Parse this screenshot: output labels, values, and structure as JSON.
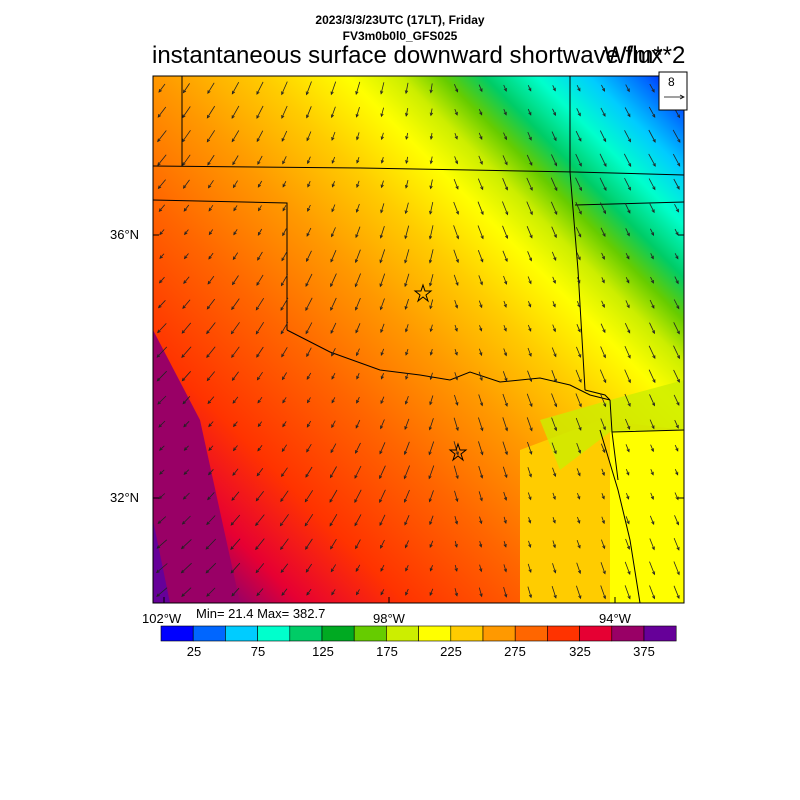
{
  "header": {
    "line1": "2023/3/3/23UTC (17LT), Friday",
    "line2": "FV3m0b0l0_GFS025",
    "title": "instantaneous surface downward shortwave flux",
    "units": "W/m**2"
  },
  "map": {
    "lat_labels": [
      "36°N",
      "32°N"
    ],
    "lon_labels": [
      "102°W",
      "98°W",
      "94°W"
    ],
    "ref_vector": "8",
    "stats": "Min= 21.4 Max= 382.7",
    "field": {
      "name": "surface downward shortwave flux",
      "units": "W/m**2",
      "min": 21.4,
      "max": 382.7,
      "pattern": "high values (325-375) in the southwest decreasing to 225-275 across central region, low values (25-175) in the northeast"
    },
    "wind": "arrows generally pointing toward the south-southeast in the east and toward the southwest/west in the west"
  },
  "colorbar": {
    "colors": [
      "#0000ff",
      "#0066ff",
      "#00ccff",
      "#00ffcc",
      "#00cc66",
      "#00aa22",
      "#66cc00",
      "#ccee00",
      "#ffff00",
      "#ffcc00",
      "#ff9900",
      "#ff6600",
      "#ff3300",
      "#e60033",
      "#990066",
      "#660099"
    ],
    "labels": [
      "25",
      "75",
      "125",
      "175",
      "225",
      "275",
      "325",
      "375"
    ]
  }
}
